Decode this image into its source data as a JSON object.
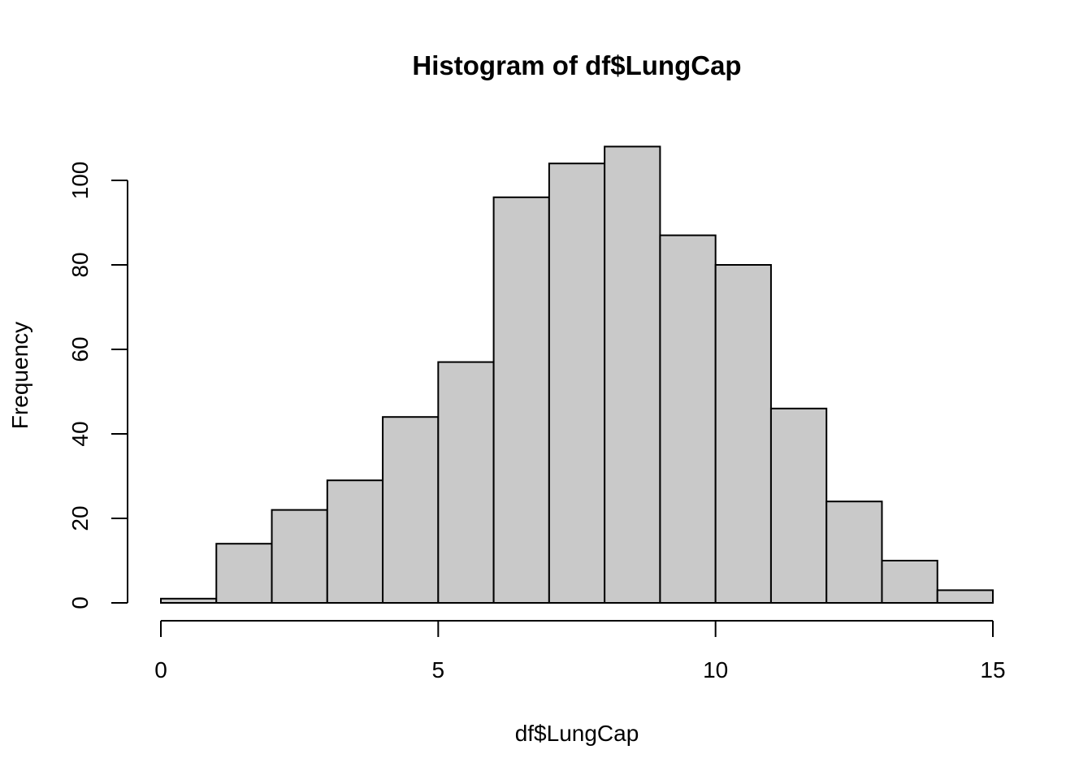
{
  "chart_data": {
    "type": "bar",
    "title": "Histogram of df$LungCap",
    "xlabel": "df$LungCap",
    "ylabel": "Frequency",
    "bins": [
      {
        "from": 0,
        "to": 1,
        "count": 1
      },
      {
        "from": 1,
        "to": 2,
        "count": 14
      },
      {
        "from": 2,
        "to": 3,
        "count": 22
      },
      {
        "from": 3,
        "to": 4,
        "count": 29
      },
      {
        "from": 4,
        "to": 5,
        "count": 44
      },
      {
        "from": 5,
        "to": 6,
        "count": 57
      },
      {
        "from": 6,
        "to": 7,
        "count": 96
      },
      {
        "from": 7,
        "to": 8,
        "count": 104
      },
      {
        "from": 8,
        "to": 9,
        "count": 108
      },
      {
        "from": 9,
        "to": 10,
        "count": 87
      },
      {
        "from": 10,
        "to": 11,
        "count": 80
      },
      {
        "from": 11,
        "to": 12,
        "count": 46
      },
      {
        "from": 12,
        "to": 13,
        "count": 24
      },
      {
        "from": 13,
        "to": 14,
        "count": 10
      },
      {
        "from": 14,
        "to": 15,
        "count": 3
      }
    ],
    "xlim": [
      0,
      15
    ],
    "ylim": [
      0,
      108
    ],
    "x_ticks": [
      0,
      5,
      10,
      15
    ],
    "y_ticks": [
      0,
      20,
      40,
      60,
      80,
      100
    ],
    "bar_fill": "#c9c9c9",
    "bar_stroke": "#000000",
    "grid": false,
    "legend": "none"
  }
}
